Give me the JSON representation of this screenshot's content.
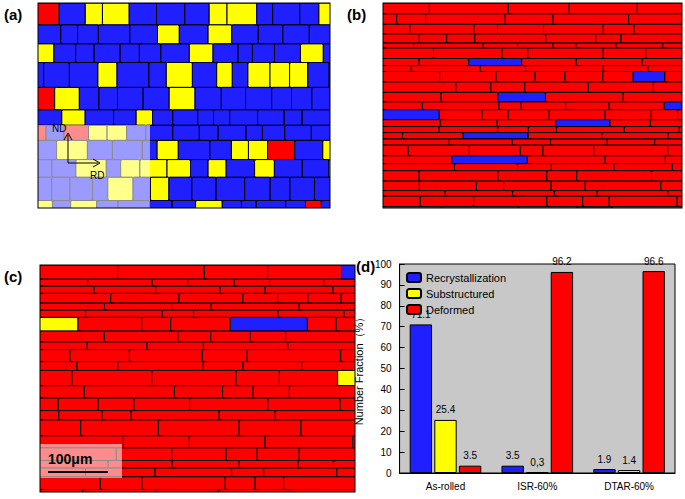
{
  "panels": [
    {
      "label": "(a)",
      "orientation": {
        "vertical": "ND",
        "horizontal": "RD"
      }
    },
    {
      "label": "(b)"
    },
    {
      "label": "(c)",
      "scale_bar": "100μm"
    }
  ],
  "chart_data": {
    "type": "bar",
    "title": "(d)",
    "y_label": "Number Fraction（%）",
    "categories": [
      "As-rolled",
      "ISR-60%",
      "DTAR-60%"
    ],
    "series": [
      {
        "name": "Recrystallization",
        "color": "#1f1fff",
        "values": [
          71.1,
          3.5,
          1.9
        ]
      },
      {
        "name": "Substructured",
        "color": "#ffff00",
        "values": [
          25.4,
          0.3,
          1.4
        ],
        "value_labels": [
          "25.4",
          "0,3",
          "1.4"
        ]
      },
      {
        "name": "Deformed",
        "color": "#ff0000",
        "values": [
          3.5,
          96.2,
          96.6
        ]
      }
    ],
    "ylim": [
      0,
      100
    ],
    "yticks": [
      0,
      10,
      20,
      30,
      40,
      50,
      60,
      70,
      80,
      90,
      100
    ],
    "grid": false,
    "legend": "upper left",
    "data_labels": true
  }
}
